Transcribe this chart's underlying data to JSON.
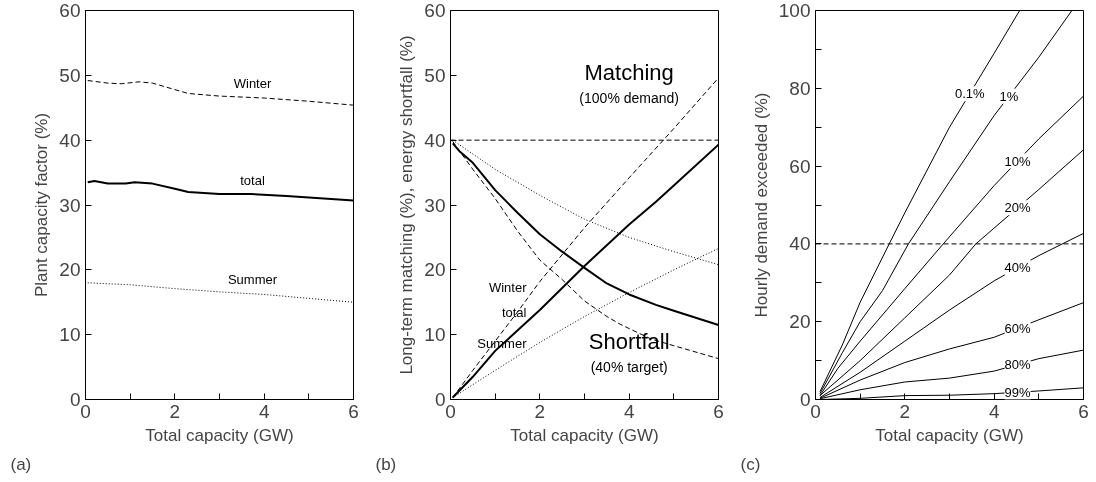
{
  "chart_data": [
    {
      "type": "line",
      "title": "(a)",
      "xlabel": "Total capacity (GW)",
      "ylabel": "Plant capacity factor (%)",
      "xlim": [
        0,
        6
      ],
      "ylim": [
        0,
        60
      ],
      "xticks": [
        0,
        {
          "value": 1,
          "label": null
        },
        2,
        {
          "value": 3,
          "label": null
        },
        4,
        {
          "value": 5,
          "label": null
        },
        6
      ],
      "yticks": [
        0,
        10,
        20,
        30,
        40,
        50,
        60
      ],
      "grid": false,
      "legend": false,
      "series": [
        {
          "name": "Winter",
          "color": "#000000",
          "line_style": "dashed",
          "x": [
            0.05,
            0.5,
            0.8,
            1.2,
            1.5,
            2.0,
            2.3,
            3,
            4,
            5,
            6
          ],
          "values": [
            49.2,
            48.8,
            48.7,
            49.0,
            48.8,
            47.8,
            47.2,
            46.8,
            46.5,
            46.0,
            45.4
          ]
        },
        {
          "name": "total",
          "color": "#000000",
          "line_style": "solid",
          "x": [
            0.05,
            0.2,
            0.5,
            0.9,
            1.1,
            1.5,
            2,
            2.3,
            3,
            3.7,
            4.5,
            6
          ],
          "values": [
            33.5,
            33.7,
            33.3,
            33.3,
            33.5,
            33.3,
            32.5,
            32.0,
            31.7,
            31.7,
            31.4,
            30.7
          ]
        },
        {
          "name": "Summer",
          "color": "#000000",
          "line_style": "dotted",
          "x": [
            0.05,
            1,
            2,
            3,
            4,
            5,
            6
          ],
          "values": [
            18,
            17.7,
            17.1,
            16.6,
            16.2,
            15.6,
            15.0
          ]
        }
      ]
    },
    {
      "type": "line",
      "title": "(b)",
      "xlabel": "Total capacity (GW)",
      "ylabel": "Long-term matching (%), energy shortfall (%)",
      "xlim": [
        0,
        6
      ],
      "ylim": [
        0,
        60
      ],
      "xticks": [
        0,
        {
          "value": 1,
          "label": null
        },
        2,
        {
          "value": 3,
          "label": null
        },
        4,
        {
          "value": 5,
          "label": null
        },
        6
      ],
      "yticks": [
        0,
        10,
        20,
        30,
        40,
        50,
        60
      ],
      "grid": false,
      "legend": false,
      "ref_lines": [
        {
          "axis": "y",
          "value": 40,
          "line_style": "dashed"
        }
      ],
      "annotations": [
        "Matching",
        "(100% demand)",
        "Shortfall",
        "(40% target)"
      ],
      "series": [
        {
          "name": "Winter",
          "color": "#000000",
          "line_style": "dashed",
          "x": [
            0.05,
            0.5,
            1,
            1.5,
            2,
            3,
            4,
            5,
            6
          ],
          "values": [
            0.3,
            4.5,
            9,
            13.5,
            18.2,
            26.5,
            34.2,
            41.8,
            49.6
          ]
        },
        {
          "name": "total",
          "color": "#000000",
          "line_style": "solid",
          "x": [
            0.05,
            0.5,
            1,
            2,
            3,
            4,
            4.6,
            5,
            6
          ],
          "values": [
            0.3,
            3.5,
            7.5,
            13.8,
            20.6,
            27,
            30.5,
            33,
            39.3
          ]
        },
        {
          "name": "Summer",
          "color": "#000000",
          "line_style": "dotted",
          "x": [
            0.05,
            1,
            2,
            3,
            4,
            5,
            6
          ],
          "values": [
            0.3,
            4.5,
            8.8,
            12.8,
            16.5,
            20,
            23.3
          ]
        },
        {
          "color": "#000000",
          "line_style": "dashed",
          "x": [
            0.05,
            0.5,
            1,
            1.5,
            2,
            2.5,
            3,
            3.5,
            3.8,
            4.5,
            5,
            6
          ],
          "values": [
            39.8,
            35.5,
            31,
            26,
            21.5,
            18.5,
            15.2,
            12.8,
            11.6,
            9.3,
            8.3,
            6.3
          ]
        },
        {
          "color": "#000000",
          "line_style": "solid",
          "x": [
            0.05,
            0.2,
            0.5,
            1,
            1.5,
            2,
            2.5,
            3,
            3.5,
            4,
            4.6,
            5,
            6
          ],
          "values": [
            39.5,
            38.3,
            36.5,
            32.3,
            28.8,
            25.5,
            22.8,
            20.3,
            17.9,
            16.2,
            14.6,
            13.7,
            11.5
          ]
        },
        {
          "color": "#000000",
          "line_style": "dotted",
          "x": [
            0.05,
            1,
            2,
            3,
            4,
            5,
            6
          ],
          "values": [
            40,
            35.5,
            31.5,
            27.8,
            25,
            22.8,
            20.8
          ]
        }
      ]
    },
    {
      "type": "line",
      "title": "(c)",
      "xlabel": "Total capacity (GW)",
      "ylabel": "Hourly demand exceeded (%)",
      "xlim": [
        0,
        6
      ],
      "ylim": [
        0,
        100
      ],
      "xticks": [
        0,
        {
          "value": 1,
          "label": null
        },
        2,
        {
          "value": 3,
          "label": null
        },
        4,
        {
          "value": 5,
          "label": null
        },
        6
      ],
      "yticks": [
        0,
        {
          "value": 10,
          "label": null
        },
        20,
        {
          "value": 30,
          "label": null
        },
        40,
        {
          "value": 50,
          "label": null
        },
        60,
        {
          "value": 70,
          "label": null
        },
        80,
        {
          "value": 90,
          "label": null
        },
        100
      ],
      "grid": false,
      "legend": false,
      "ref_lines": [
        {
          "axis": "y",
          "value": 40,
          "line_style": "dashed"
        }
      ],
      "series": [
        {
          "name": "0.1%",
          "color": "#000000",
          "line_style": "solid",
          "x": [
            0.1,
            0.6,
            1,
            1.65,
            2,
            3,
            4,
            4.57
          ],
          "values": [
            2,
            14,
            25,
            40,
            48,
            70,
            89,
            100
          ]
        },
        {
          "name": "1%",
          "color": "#000000",
          "line_style": "solid",
          "x": [
            0.1,
            0.6,
            1,
            1.5,
            2.08,
            3,
            4,
            5,
            5.74
          ],
          "values": [
            1.5,
            12,
            20,
            28,
            40,
            56,
            73,
            88,
            100
          ]
        },
        {
          "name": "10%",
          "color": "#000000",
          "line_style": "solid",
          "x": [
            0.1,
            0.5,
            1,
            2,
            2.86,
            4,
            5,
            6
          ],
          "values": [
            1,
            8,
            15,
            28.5,
            40,
            55,
            67,
            78
          ]
        },
        {
          "name": "20%",
          "color": "#000000",
          "line_style": "solid",
          "x": [
            0.1,
            1,
            2,
            3,
            3.59,
            5,
            6
          ],
          "values": [
            1,
            10,
            21,
            32,
            40,
            54,
            64.2
          ]
        },
        {
          "name": "40%",
          "color": "#000000",
          "line_style": "solid",
          "x": [
            0.1,
            1,
            2,
            3,
            4,
            5,
            6
          ],
          "values": [
            0.5,
            7,
            15,
            23,
            30.5,
            37,
            42.7
          ]
        },
        {
          "name": "60%",
          "color": "#000000",
          "line_style": "solid",
          "x": [
            0.1,
            1,
            2,
            3,
            4,
            5,
            6
          ],
          "values": [
            0.3,
            5,
            9.5,
            13,
            16,
            20.5,
            24.9
          ]
        },
        {
          "name": "80%",
          "color": "#000000",
          "line_style": "solid",
          "x": [
            0.1,
            1,
            2,
            3,
            4,
            5,
            6
          ],
          "values": [
            0.2,
            2.5,
            4.5,
            5.5,
            7.3,
            10.5,
            12.7
          ]
        },
        {
          "name": "99%",
          "color": "#000000",
          "line_style": "solid",
          "x": [
            0.1,
            1,
            2,
            3,
            4,
            5,
            6
          ],
          "values": [
            0,
            0.3,
            1,
            1.1,
            1.5,
            2.2,
            3
          ]
        }
      ]
    }
  ]
}
